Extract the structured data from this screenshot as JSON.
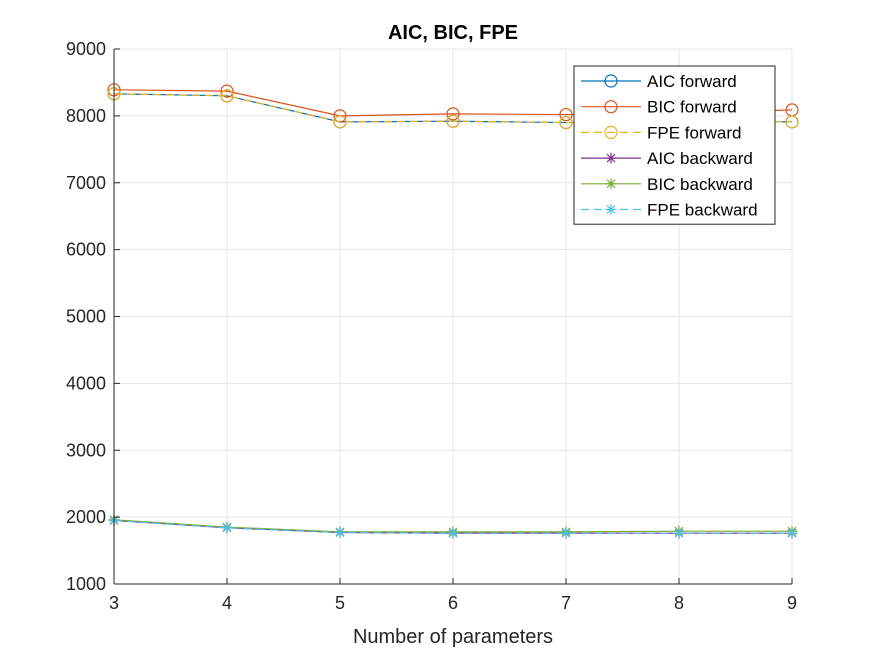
{
  "chart_data": {
    "type": "line",
    "title": "AIC, BIC, FPE",
    "xlabel": "Number of parameters",
    "ylabel": "",
    "xlim": [
      3,
      9
    ],
    "ylim": [
      1000,
      9000
    ],
    "x_ticks": [
      3,
      4,
      5,
      6,
      7,
      8,
      9
    ],
    "y_ticks": [
      1000,
      2000,
      3000,
      4000,
      5000,
      6000,
      7000,
      8000,
      9000
    ],
    "grid": true,
    "legend_position": "top-right",
    "x": [
      3,
      4,
      5,
      6,
      7,
      8,
      9
    ],
    "series": [
      {
        "name": "AIC forward",
        "color": "#0072BD",
        "marker": "circle",
        "dash": false,
        "values": [
          8330,
          8300,
          7910,
          7920,
          7900,
          7910,
          7910
        ]
      },
      {
        "name": "BIC forward",
        "color": "#D95319",
        "marker": "circle",
        "dash": false,
        "values": [
          8390,
          8370,
          8000,
          8030,
          8020,
          8030,
          8090
        ]
      },
      {
        "name": "FPE forward",
        "color": "#EDB120",
        "marker": "circle",
        "dash": true,
        "values": [
          8330,
          8300,
          7910,
          7920,
          7900,
          7910,
          7910
        ]
      },
      {
        "name": "AIC backward",
        "color": "#7E2F8E",
        "marker": "star",
        "dash": false,
        "values": [
          1950,
          1840,
          1770,
          1760,
          1760,
          1760,
          1760
        ]
      },
      {
        "name": "BIC backward",
        "color": "#77AC30",
        "marker": "star",
        "dash": false,
        "values": [
          1960,
          1850,
          1780,
          1780,
          1780,
          1790,
          1790
        ]
      },
      {
        "name": "FPE backward",
        "color": "#4DBEEE",
        "marker": "star",
        "dash": true,
        "values": [
          1950,
          1840,
          1770,
          1760,
          1760,
          1760,
          1760
        ]
      }
    ]
  }
}
